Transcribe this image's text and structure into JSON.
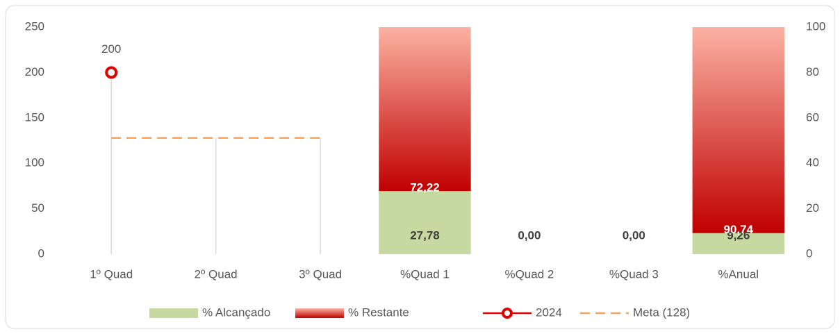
{
  "chart_data": {
    "type": "combo",
    "categories": [
      "1º Quad",
      "2º Quad",
      "3º Quad",
      "%Quad 1",
      "%Quad 2",
      "%Quad 3",
      "%Anual"
    ],
    "ylim": [
      0,
      250
    ],
    "yticks": [
      0,
      50,
      100,
      150,
      200,
      250
    ],
    "y2lim": [
      0,
      100
    ],
    "y2ticks": [
      0,
      20,
      40,
      60,
      80,
      100
    ],
    "series": [
      {
        "name": "% Alcançado",
        "type": "bar",
        "axis": "y2",
        "color": "#c5d9a0",
        "values": [
          null,
          null,
          null,
          27.78,
          0,
          0,
          9.26
        ],
        "value_labels": [
          null,
          null,
          null,
          "27,78",
          "0,00",
          "0,00",
          "9,26"
        ]
      },
      {
        "name": "% Restante",
        "type": "bar",
        "axis": "y2",
        "color": "#c00000",
        "gradient": [
          "#fbb2a3",
          "#c00000"
        ],
        "values": [
          null,
          null,
          null,
          72.22,
          0,
          0,
          90.74
        ],
        "value_labels": [
          null,
          null,
          null,
          "72,22",
          "0,00",
          "0,00",
          "90,74"
        ]
      },
      {
        "name": "2024",
        "type": "line",
        "axis": "y",
        "color": "#e00000",
        "marker": "circle",
        "values": [
          200,
          null,
          null,
          null,
          null,
          null,
          null
        ]
      },
      {
        "name": "Meta (128)",
        "type": "line",
        "axis": "y",
        "color": "#f4a35c",
        "dash": true,
        "values": [
          128,
          128,
          128,
          null,
          null,
          null,
          null
        ]
      }
    ],
    "drop_lines": true,
    "legend": "bottom"
  }
}
